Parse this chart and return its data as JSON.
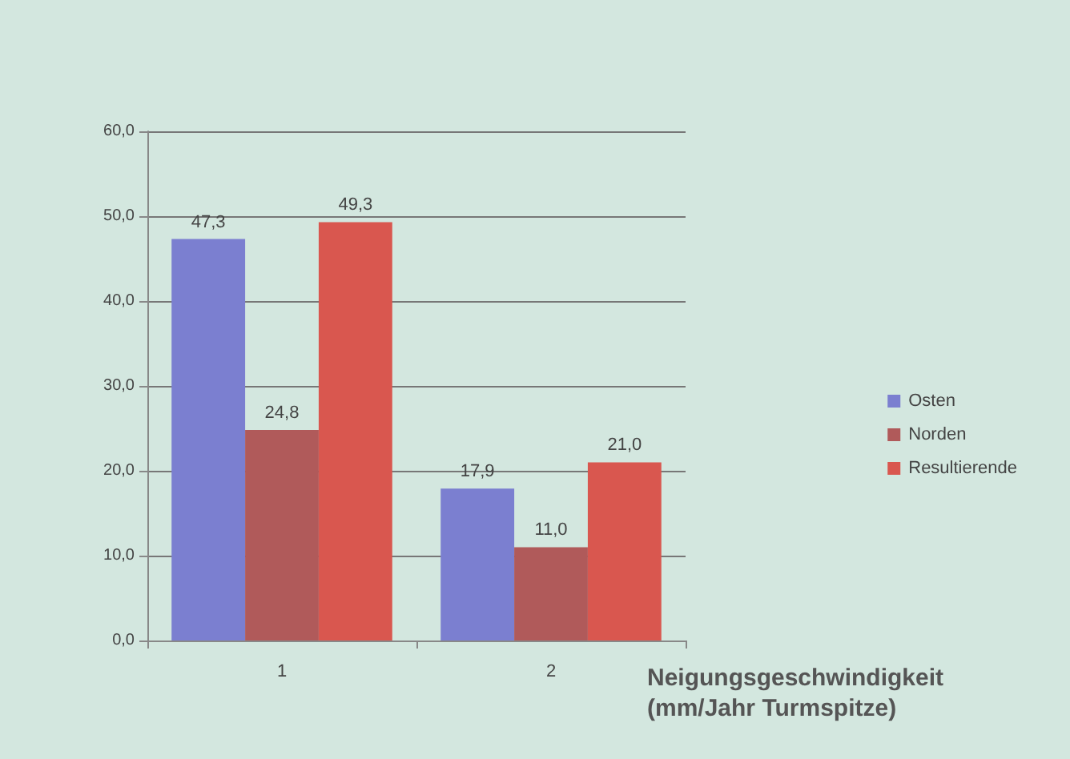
{
  "chart_data": {
    "type": "bar",
    "categories": [
      "1",
      "2"
    ],
    "series": [
      {
        "name": "Osten",
        "color": "#7b7fd0",
        "values": [
          47.3,
          17.9
        ],
        "value_labels": [
          "47,3",
          "17,9"
        ]
      },
      {
        "name": "Norden",
        "color": "#b05a5a",
        "values": [
          24.8,
          11.0
        ],
        "value_labels": [
          "24,8",
          "11,0"
        ]
      },
      {
        "name": "Resultierende",
        "color": "#d9574f",
        "values": [
          49.3,
          21.0
        ],
        "value_labels": [
          "49,3",
          "21,0"
        ]
      }
    ],
    "xlabel": "Neigungsgeschwindigkeit (mm/Jahr Turmspitze)",
    "ylim": [
      0,
      60
    ],
    "yticks": [
      {
        "value": 0,
        "label": "0,0"
      },
      {
        "value": 10,
        "label": "10,0"
      },
      {
        "value": 20,
        "label": "20,0"
      },
      {
        "value": 30,
        "label": "30,0"
      },
      {
        "value": 40,
        "label": "40,0"
      },
      {
        "value": 50,
        "label": "50,0"
      },
      {
        "value": 60,
        "label": "60,0"
      }
    ],
    "grid": "y",
    "legend": "right"
  }
}
